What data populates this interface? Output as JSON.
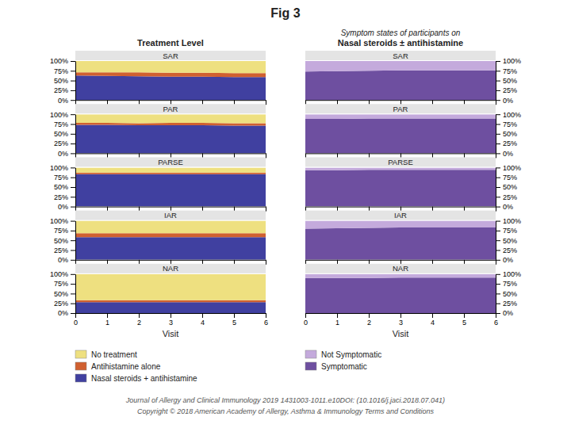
{
  "title": "Fig 3",
  "annotations": [
    "Journal of Allergy and Clinical Immunology 2019 1431003-1011.e10DOI: (10.1016/j.jaci.2018.07.041)",
    "Copyright © 2018 American Academy of Allergy, Asthma & Immunology  Terms and Conditions"
  ],
  "chart_data": [
    {
      "type": "area",
      "title": "SAR",
      "subtitle": [
        "Treatment Level"
      ],
      "stacked": true,
      "grid": false,
      "tick_labels": "y",
      "x": [
        0,
        1,
        2,
        3,
        4,
        5,
        6
      ],
      "xlim": [
        0,
        6
      ],
      "xticks": [
        0,
        1,
        2,
        3,
        4,
        5,
        6
      ],
      "ylim": [
        0,
        100
      ],
      "yticks": [
        {
          "value": 0,
          "label": "0%"
        },
        {
          "value": 25,
          "label": "25%"
        },
        {
          "value": 50,
          "label": "50%"
        },
        {
          "value": 75,
          "label": "75%"
        },
        {
          "value": 100,
          "label": "100%"
        }
      ],
      "series": [
        {
          "name": "Nasal steroids + antihistamine",
          "color": "#4040A0",
          "values": [
            63,
            62,
            61,
            60,
            60,
            59,
            59
          ]
        },
        {
          "name": "Antihistamine alone",
          "color": "#D06030",
          "values": [
            8,
            9,
            10,
            10,
            10,
            10,
            10
          ]
        },
        {
          "name": "No treatment",
          "color": "#EEE080",
          "values": [
            29,
            29,
            29,
            30,
            30,
            31,
            31
          ]
        }
      ]
    },
    {
      "type": "area",
      "title": "PAR",
      "stacked": true,
      "grid": false,
      "tick_labels": "y",
      "x": [
        0,
        1,
        2,
        3,
        4,
        5,
        6
      ],
      "xlim": [
        0,
        6
      ],
      "xticks": [
        0,
        1,
        2,
        3,
        4,
        5,
        6
      ],
      "ylim": [
        0,
        100
      ],
      "yticks": [
        {
          "value": 0,
          "label": "0%"
        },
        {
          "value": 25,
          "label": "25%"
        },
        {
          "value": 50,
          "label": "50%"
        },
        {
          "value": 75,
          "label": "75%"
        },
        {
          "value": 100,
          "label": "100%"
        }
      ],
      "series": [
        {
          "name": "Nasal steroids + antihistamine",
          "color": "#4040A0",
          "values": [
            73,
            73,
            72,
            72,
            72,
            71,
            71
          ]
        },
        {
          "name": "Antihistamine alone",
          "color": "#D06030",
          "values": [
            5,
            5,
            5,
            6,
            6,
            6,
            6
          ]
        },
        {
          "name": "No treatment",
          "color": "#EEE080",
          "values": [
            22,
            22,
            23,
            22,
            22,
            23,
            23
          ]
        }
      ]
    },
    {
      "type": "area",
      "title": "PARSE",
      "stacked": true,
      "grid": false,
      "tick_labels": "y",
      "x": [
        0,
        1,
        2,
        3,
        4,
        5,
        6
      ],
      "xlim": [
        0,
        6
      ],
      "xticks": [
        0,
        1,
        2,
        3,
        4,
        5,
        6
      ],
      "ylim": [
        0,
        100
      ],
      "yticks": [
        {
          "value": 0,
          "label": "0%"
        },
        {
          "value": 25,
          "label": "25%"
        },
        {
          "value": 50,
          "label": "50%"
        },
        {
          "value": 75,
          "label": "75%"
        },
        {
          "value": 100,
          "label": "100%"
        }
      ],
      "series": [
        {
          "name": "Nasal steroids + antihistamine",
          "color": "#4040A0",
          "values": [
            83,
            83,
            83,
            83,
            83,
            83,
            83
          ]
        },
        {
          "name": "Antihistamine alone",
          "color": "#D06030",
          "values": [
            4,
            4,
            4,
            4,
            4,
            4,
            4
          ]
        },
        {
          "name": "No treatment",
          "color": "#EEE080",
          "values": [
            13,
            13,
            13,
            13,
            13,
            13,
            13
          ]
        }
      ]
    },
    {
      "type": "area",
      "title": "IAR",
      "stacked": true,
      "grid": false,
      "tick_labels": "y",
      "x": [
        0,
        1,
        2,
        3,
        4,
        5,
        6
      ],
      "xlim": [
        0,
        6
      ],
      "xticks": [
        0,
        1,
        2,
        3,
        4,
        5,
        6
      ],
      "ylim": [
        0,
        100
      ],
      "yticks": [
        {
          "value": 0,
          "label": "0%"
        },
        {
          "value": 25,
          "label": "25%"
        },
        {
          "value": 50,
          "label": "50%"
        },
        {
          "value": 75,
          "label": "75%"
        },
        {
          "value": 100,
          "label": "100%"
        }
      ],
      "series": [
        {
          "name": "Nasal steroids + antihistamine",
          "color": "#4040A0",
          "values": [
            58,
            58,
            58,
            58,
            58,
            58,
            58
          ]
        },
        {
          "name": "Antihistamine alone",
          "color": "#D06030",
          "values": [
            10,
            10,
            10,
            10,
            10,
            10,
            10
          ]
        },
        {
          "name": "No treatment",
          "color": "#EEE080",
          "values": [
            32,
            32,
            32,
            32,
            32,
            32,
            32
          ]
        }
      ]
    },
    {
      "type": "area",
      "title": "NAR",
      "stacked": true,
      "grid": false,
      "legend": "bottom",
      "xlabel": "Visit",
      "x": [
        0,
        1,
        2,
        3,
        4,
        5,
        6
      ],
      "xlim": [
        0,
        6
      ],
      "xticks": [
        0,
        1,
        2,
        3,
        4,
        5,
        6
      ],
      "ylim": [
        0,
        100
      ],
      "yticks": [
        {
          "value": 0,
          "label": "0%"
        },
        {
          "value": 25,
          "label": "25%"
        },
        {
          "value": 50,
          "label": "50%"
        },
        {
          "value": 75,
          "label": "75%"
        },
        {
          "value": 100,
          "label": "100%"
        }
      ],
      "series": [
        {
          "name": "Nasal steroids + antihistamine",
          "color": "#4040A0",
          "values": [
            28,
            28,
            28,
            28,
            28,
            28,
            28
          ]
        },
        {
          "name": "Antihistamine alone",
          "color": "#D06030",
          "values": [
            5,
            5,
            5,
            5,
            5,
            5,
            5
          ]
        },
        {
          "name": "No treatment",
          "color": "#EEE080",
          "values": [
            67,
            67,
            67,
            67,
            67,
            67,
            67
          ]
        }
      ]
    },
    {
      "type": "area",
      "title": "SAR",
      "subtitle": [
        "Symptom states of participants on",
        "Nasal steroids ± antihistamine"
      ],
      "stacked": true,
      "grid": false,
      "tick_labels": "y",
      "x": [
        0,
        1,
        2,
        3,
        4,
        5,
        6
      ],
      "xlim": [
        0,
        6
      ],
      "xticks": [
        0,
        1,
        2,
        3,
        4,
        5,
        6
      ],
      "ylim": [
        0,
        100
      ],
      "yticks": [
        {
          "value": 0,
          "label": "0%"
        },
        {
          "value": 25,
          "label": "25%"
        },
        {
          "value": 50,
          "label": "50%"
        },
        {
          "value": 75,
          "label": "75%"
        },
        {
          "value": 100,
          "label": "100%"
        }
      ],
      "series": [
        {
          "name": "Symptomatic",
          "color": "#6E4FA0",
          "values": [
            73,
            74,
            75,
            76,
            76,
            76,
            76
          ]
        },
        {
          "name": "Not Symptomatic",
          "color": "#C4AADC",
          "values": [
            27,
            26,
            25,
            24,
            24,
            24,
            24
          ]
        }
      ]
    },
    {
      "type": "area",
      "title": "PAR",
      "stacked": true,
      "grid": false,
      "tick_labels": "y",
      "x": [
        0,
        1,
        2,
        3,
        4,
        5,
        6
      ],
      "xlim": [
        0,
        6
      ],
      "xticks": [
        0,
        1,
        2,
        3,
        4,
        5,
        6
      ],
      "ylim": [
        0,
        100
      ],
      "yticks": [
        {
          "value": 0,
          "label": "0%"
        },
        {
          "value": 25,
          "label": "25%"
        },
        {
          "value": 50,
          "label": "50%"
        },
        {
          "value": 75,
          "label": "75%"
        },
        {
          "value": 100,
          "label": "100%"
        }
      ],
      "series": [
        {
          "name": "Symptomatic",
          "color": "#6E4FA0",
          "values": [
            88,
            88,
            89,
            89,
            89,
            89,
            89
          ]
        },
        {
          "name": "Not Symptomatic",
          "color": "#C4AADC",
          "values": [
            12,
            12,
            11,
            11,
            11,
            11,
            11
          ]
        }
      ]
    },
    {
      "type": "area",
      "title": "PARSE",
      "stacked": true,
      "grid": false,
      "tick_labels": "y",
      "x": [
        0,
        1,
        2,
        3,
        4,
        5,
        6
      ],
      "xlim": [
        0,
        6
      ],
      "xticks": [
        0,
        1,
        2,
        3,
        4,
        5,
        6
      ],
      "ylim": [
        0,
        100
      ],
      "yticks": [
        {
          "value": 0,
          "label": "0%"
        },
        {
          "value": 25,
          "label": "25%"
        },
        {
          "value": 50,
          "label": "50%"
        },
        {
          "value": 75,
          "label": "75%"
        },
        {
          "value": 100,
          "label": "100%"
        }
      ],
      "series": [
        {
          "name": "Symptomatic",
          "color": "#6E4FA0",
          "values": [
            93,
            93,
            94,
            94,
            94,
            94,
            94
          ]
        },
        {
          "name": "Not Symptomatic",
          "color": "#C4AADC",
          "values": [
            7,
            7,
            6,
            6,
            6,
            6,
            6
          ]
        }
      ]
    },
    {
      "type": "area",
      "title": "IAR",
      "stacked": true,
      "grid": false,
      "tick_labels": "y",
      "x": [
        0,
        1,
        2,
        3,
        4,
        5,
        6
      ],
      "xlim": [
        0,
        6
      ],
      "xticks": [
        0,
        1,
        2,
        3,
        4,
        5,
        6
      ],
      "ylim": [
        0,
        100
      ],
      "yticks": [
        {
          "value": 0,
          "label": "0%"
        },
        {
          "value": 25,
          "label": "25%"
        },
        {
          "value": 50,
          "label": "50%"
        },
        {
          "value": 75,
          "label": "75%"
        },
        {
          "value": 100,
          "label": "100%"
        }
      ],
      "series": [
        {
          "name": "Symptomatic",
          "color": "#6E4FA0",
          "values": [
            80,
            81,
            82,
            83,
            83,
            83,
            83
          ]
        },
        {
          "name": "Not Symptomatic",
          "color": "#C4AADC",
          "values": [
            20,
            19,
            18,
            17,
            17,
            17,
            17
          ]
        }
      ]
    },
    {
      "type": "area",
      "title": "NAR",
      "stacked": true,
      "grid": false,
      "legend": "bottom",
      "xlabel": "Visit",
      "x": [
        0,
        1,
        2,
        3,
        4,
        5,
        6
      ],
      "xlim": [
        0,
        6
      ],
      "xticks": [
        0,
        1,
        2,
        3,
        4,
        5,
        6
      ],
      "ylim": [
        0,
        100
      ],
      "yticks": [
        {
          "value": 0,
          "label": "0%"
        },
        {
          "value": 25,
          "label": "25%"
        },
        {
          "value": 50,
          "label": "50%"
        },
        {
          "value": 75,
          "label": "75%"
        },
        {
          "value": 100,
          "label": "100%"
        }
      ],
      "series": [
        {
          "name": "Symptomatic",
          "color": "#6E4FA0",
          "values": [
            90,
            90,
            90,
            91,
            91,
            91,
            91
          ]
        },
        {
          "name": "Not Symptomatic",
          "color": "#C4AADC",
          "values": [
            10,
            10,
            10,
            9,
            9,
            9,
            9
          ]
        }
      ]
    }
  ]
}
